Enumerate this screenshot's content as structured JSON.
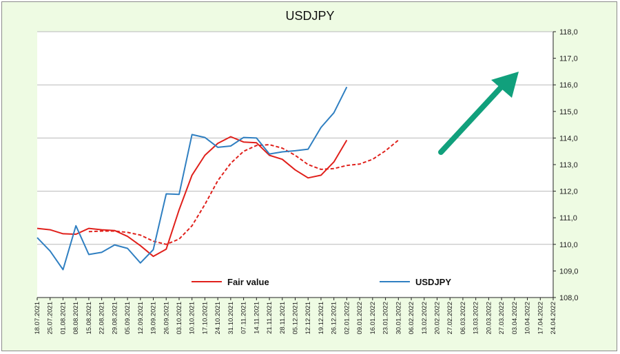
{
  "chart_data": {
    "type": "line",
    "title": "USDJPY",
    "y_axis_position": "right",
    "ylim": [
      108.0,
      118.0
    ],
    "y_ticks": [
      "108,0",
      "109,0",
      "110,0",
      "111,0",
      "112,0",
      "113,0",
      "114,0",
      "115,0",
      "116,0",
      "117,0",
      "118,0"
    ],
    "x_labels": [
      "18.07.2021",
      "25.07.2021",
      "01.08.2021",
      "08.08.2021",
      "15.08.2021",
      "22.08.2021",
      "29.08.2021",
      "05.09.2021",
      "12.09.2021",
      "19.09.2021",
      "26.09.2021",
      "03.10.2021",
      "10.10.2021",
      "17.10.2021",
      "24.10.2021",
      "31.10.2021",
      "07.11.2021",
      "14.11.2021",
      "21.11.2021",
      "28.11.2021",
      "05.12.2021",
      "12.12.2021",
      "19.12.2021",
      "26.12.2021",
      "02.01.2022",
      "09.01.2022",
      "16.01.2022",
      "23.01.2022",
      "30.01.2022",
      "06.02.2022",
      "13.02.2022",
      "20.02.2022",
      "27.02.2022",
      "06.03.2022",
      "13.03.2022",
      "20.03.2022",
      "27.03.2022",
      "03.04.2022",
      "10.04.2022",
      "17.04.2022",
      "24.04.2022"
    ],
    "grid": "horizontal",
    "legend_position": "bottom",
    "series": [
      {
        "name": "Fair value",
        "color": "#e0201b",
        "style": "solid",
        "values": [
          110.6,
          110.55,
          110.4,
          110.38,
          110.6,
          110.55,
          110.52,
          110.3,
          109.95,
          109.55,
          109.82,
          111.3,
          112.6,
          113.35,
          113.8,
          114.05,
          113.85,
          113.82,
          113.35,
          113.2,
          112.8,
          112.5,
          112.6,
          113.1,
          113.92
        ]
      },
      {
        "name": "",
        "color": "#e0201b",
        "style": "dashed",
        "values": [
          null,
          null,
          null,
          null,
          110.48,
          110.5,
          110.5,
          110.45,
          110.35,
          110.12,
          110.0,
          110.2,
          110.7,
          111.5,
          112.4,
          113.05,
          113.5,
          113.72,
          113.75,
          113.62,
          113.35,
          113.0,
          112.82,
          112.85,
          112.97,
          113.02,
          113.2,
          113.52,
          113.92
        ]
      },
      {
        "name": "USDJPY",
        "color": "#2f7fc1",
        "style": "solid",
        "values": [
          110.25,
          109.75,
          109.05,
          110.7,
          109.62,
          109.7,
          109.98,
          109.85,
          109.3,
          109.8,
          111.9,
          111.88,
          114.13,
          114.02,
          113.65,
          113.7,
          114.02,
          114.0,
          113.4,
          113.48,
          113.52,
          113.58,
          114.4,
          114.95,
          115.92
        ]
      }
    ],
    "arrow_color": "#11a07c"
  }
}
